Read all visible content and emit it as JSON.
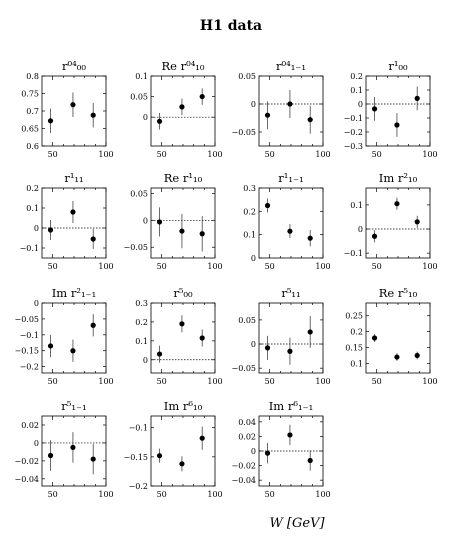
{
  "figure": {
    "title": "H1 data",
    "xlabel": "W [GeV]"
  },
  "chart_data": [
    {
      "type": "scatter",
      "title": "r⁰⁴₀₀",
      "xlabel": "W [GeV]",
      "ylabel": "",
      "x": [
        48,
        69,
        88
      ],
      "y": [
        0.672,
        0.718,
        0.688
      ],
      "yerr": [
        0.035,
        0.035,
        0.035
      ],
      "xlim": [
        40,
        100
      ],
      "ylim": [
        0.6,
        0.8
      ],
      "yticks": [
        0.6,
        0.65,
        0.7,
        0.75,
        0.8
      ],
      "xticks": [
        50,
        100
      ],
      "zero_line": false,
      "grid": false
    },
    {
      "type": "scatter",
      "title": "Re r⁰⁴₁₀",
      "xlabel": "W [GeV]",
      "ylabel": "",
      "x": [
        48,
        69,
        88
      ],
      "y": [
        -0.01,
        0.025,
        0.05
      ],
      "yerr": [
        0.02,
        0.02,
        0.02
      ],
      "xlim": [
        40,
        100
      ],
      "ylim": [
        -0.07,
        0.1
      ],
      "yticks": [
        0,
        0.05,
        0.1
      ],
      "xticks": [
        50,
        100
      ],
      "zero_line": true,
      "grid": false
    },
    {
      "type": "scatter",
      "title": "r⁰⁴₁₋₁",
      "xlabel": "W [GeV]",
      "ylabel": "",
      "x": [
        48,
        69,
        88
      ],
      "y": [
        -0.02,
        0,
        -0.028
      ],
      "yerr": [
        0.025,
        0.025,
        0.025
      ],
      "xlim": [
        40,
        100
      ],
      "ylim": [
        -0.075,
        0.05
      ],
      "yticks": [
        -0.05,
        0,
        0.05
      ],
      "xticks": [
        50,
        100
      ],
      "zero_line": true,
      "grid": false
    },
    {
      "type": "scatter",
      "title": "r¹₀₀",
      "xlabel": "W [GeV]",
      "ylabel": "",
      "x": [
        48,
        69,
        88
      ],
      "y": [
        -0.035,
        -0.15,
        0.04
      ],
      "yerr": [
        0.085,
        0.085,
        0.085
      ],
      "xlim": [
        40,
        100
      ],
      "ylim": [
        -0.3,
        0.2
      ],
      "yticks": [
        -0.3,
        -0.2,
        -0.1,
        0,
        0.1,
        0.2
      ],
      "xticks": [
        50,
        100
      ],
      "zero_line": true,
      "grid": false
    },
    {
      "type": "scatter",
      "title": "r¹₁₁",
      "xlabel": "W [GeV]",
      "ylabel": "",
      "x": [
        48,
        69,
        88
      ],
      "y": [
        -0.01,
        0.08,
        -0.055
      ],
      "yerr": [
        0.05,
        0.055,
        0.05
      ],
      "xlim": [
        40,
        100
      ],
      "ylim": [
        -0.15,
        0.2
      ],
      "yticks": [
        -0.1,
        0,
        0.1,
        0.2
      ],
      "xticks": [
        50,
        100
      ],
      "zero_line": true,
      "grid": false
    },
    {
      "type": "scatter",
      "title": "Re r¹₁₀",
      "xlabel": "W [GeV]",
      "ylabel": "",
      "x": [
        48,
        69,
        88
      ],
      "y": [
        -0.003,
        -0.02,
        -0.025
      ],
      "yerr": [
        0.027,
        0.032,
        0.033
      ],
      "xlim": [
        40,
        100
      ],
      "ylim": [
        -0.07,
        0.06
      ],
      "yticks": [
        -0.05,
        0,
        0.05
      ],
      "xticks": [
        50,
        100
      ],
      "zero_line": true,
      "grid": false
    },
    {
      "type": "scatter",
      "title": "r¹₁₋₁",
      "xlabel": "W [GeV]",
      "ylabel": "",
      "x": [
        48,
        69,
        88
      ],
      "y": [
        0.225,
        0.115,
        0.085
      ],
      "yerr": [
        0.03,
        0.03,
        0.035
      ],
      "xlim": [
        40,
        100
      ],
      "ylim": [
        0,
        0.3
      ],
      "yticks": [
        0,
        0.1,
        0.2,
        0.3
      ],
      "xticks": [
        50,
        100
      ],
      "zero_line": false,
      "grid": false
    },
    {
      "type": "scatter",
      "title": "Im r²₁₀",
      "xlabel": "W [GeV]",
      "ylabel": "",
      "x": [
        48,
        69,
        88
      ],
      "y": [
        -0.03,
        0.105,
        0.03
      ],
      "yerr": [
        0.025,
        0.025,
        0.025
      ],
      "xlim": [
        40,
        100
      ],
      "ylim": [
        -0.12,
        0.17
      ],
      "yticks": [
        -0.1,
        0,
        0.1
      ],
      "xticks": [
        50,
        100
      ],
      "zero_line": true,
      "grid": false
    },
    {
      "type": "scatter",
      "title": "Im r²₁₋₁",
      "xlabel": "W [GeV]",
      "ylabel": "",
      "x": [
        48,
        69,
        88
      ],
      "y": [
        -0.135,
        -0.15,
        -0.07
      ],
      "yerr": [
        0.035,
        0.035,
        0.035
      ],
      "xlim": [
        40,
        100
      ],
      "ylim": [
        -0.22,
        0
      ],
      "yticks": [
        -0.2,
        -0.15,
        -0.1,
        -0.05,
        0
      ],
      "xticks": [
        50,
        100
      ],
      "zero_line": false,
      "grid": false
    },
    {
      "type": "scatter",
      "title": "r⁵₀₀",
      "xlabel": "W [GeV]",
      "ylabel": "",
      "x": [
        48,
        69,
        88
      ],
      "y": [
        0.03,
        0.19,
        0.115
      ],
      "yerr": [
        0.045,
        0.045,
        0.045
      ],
      "xlim": [
        40,
        100
      ],
      "ylim": [
        -0.07,
        0.3
      ],
      "yticks": [
        0,
        0.1,
        0.2,
        0.3
      ],
      "xticks": [
        50,
        100
      ],
      "zero_line": true,
      "grid": false
    },
    {
      "type": "scatter",
      "title": "r⁵₁₁",
      "xlabel": "W [GeV]",
      "ylabel": "",
      "x": [
        48,
        69,
        88
      ],
      "y": [
        -0.008,
        -0.015,
        0.025
      ],
      "yerr": [
        0.025,
        0.028,
        0.033
      ],
      "xlim": [
        40,
        100
      ],
      "ylim": [
        -0.06,
        0.085
      ],
      "yticks": [
        -0.05,
        0,
        0.05
      ],
      "xticks": [
        50,
        100
      ],
      "zero_line": true,
      "grid": false
    },
    {
      "type": "scatter",
      "title": "Re r⁵₁₀",
      "xlabel": "W [GeV]",
      "ylabel": "",
      "x": [
        48,
        69,
        88
      ],
      "y": [
        0.18,
        0.12,
        0.125
      ],
      "yerr": [
        0.012,
        0.012,
        0.012
      ],
      "xlim": [
        40,
        100
      ],
      "ylim": [
        0.07,
        0.29
      ],
      "yticks": [
        0.1,
        0.15,
        0.2,
        0.25
      ],
      "xticks": [
        50,
        100
      ],
      "zero_line": false,
      "grid": false
    },
    {
      "type": "scatter",
      "title": "r⁵₁₋₁",
      "xlabel": "W [GeV]",
      "ylabel": "",
      "x": [
        48,
        69,
        88
      ],
      "y": [
        -0.014,
        -0.005,
        -0.018
      ],
      "yerr": [
        0.017,
        0.017,
        0.017
      ],
      "xlim": [
        40,
        100
      ],
      "ylim": [
        -0.048,
        0.03
      ],
      "yticks": [
        -0.04,
        -0.02,
        0,
        0.02
      ],
      "xticks": [
        50,
        100
      ],
      "zero_line": true,
      "grid": false
    },
    {
      "type": "scatter",
      "title": "Im r⁶₁₀",
      "xlabel": "W [GeV]",
      "ylabel": "",
      "x": [
        48,
        69,
        88
      ],
      "y": [
        -0.148,
        -0.162,
        -0.118
      ],
      "yerr": [
        0.012,
        0.013,
        0.02
      ],
      "xlim": [
        40,
        100
      ],
      "ylim": [
        -0.2,
        -0.08
      ],
      "yticks": [
        -0.2,
        -0.15,
        -0.1
      ],
      "xticks": [
        50,
        100
      ],
      "zero_line": false,
      "grid": false
    },
    {
      "type": "scatter",
      "title": "Im r⁶₁₋₁",
      "xlabel": "W [GeV]",
      "ylabel": "",
      "x": [
        48,
        69,
        88
      ],
      "y": [
        -0.003,
        0.022,
        -0.013
      ],
      "yerr": [
        0.014,
        0.014,
        0.014
      ],
      "xlim": [
        40,
        100
      ],
      "ylim": [
        -0.048,
        0.048
      ],
      "yticks": [
        -0.04,
        -0.02,
        0,
        0.02,
        0.04
      ],
      "xticks": [
        50,
        100
      ],
      "zero_line": true,
      "grid": false
    }
  ]
}
